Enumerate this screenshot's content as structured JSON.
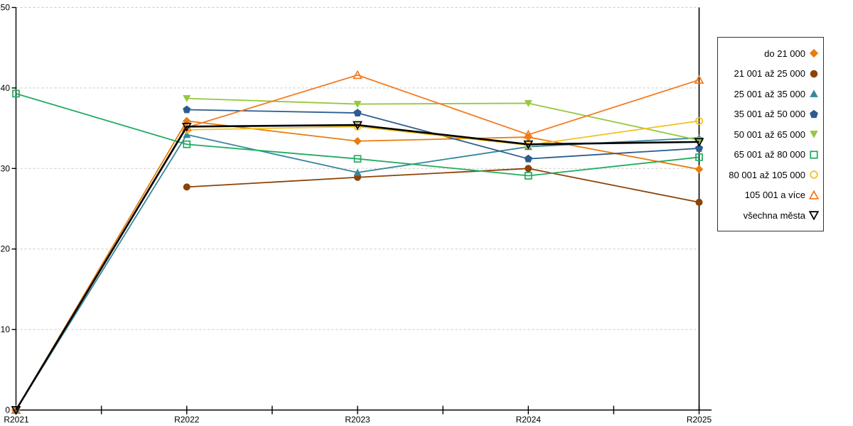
{
  "chart_data": {
    "type": "line",
    "title": "",
    "xlabel": "",
    "ylabel": "",
    "x_categories": [
      "R2021",
      "R2022",
      "R2023",
      "R2024",
      "R2025"
    ],
    "ylim": [
      0,
      50
    ],
    "yticks": [
      0,
      10,
      20,
      30,
      40,
      50
    ],
    "grid": "horizontal-dashed",
    "legend_position": "right-outside",
    "axis_color": "#000000",
    "grid_color": "#c9c9c9",
    "series": [
      {
        "name": "do 21 000",
        "color": "#e87d0d",
        "marker": "diamond",
        "values": [
          0,
          35.9,
          33.4,
          33.9,
          29.9
        ]
      },
      {
        "name": "21 001 až 25 000",
        "color": "#8c4307",
        "marker": "circle",
        "values": [
          null,
          27.7,
          28.9,
          30.0,
          25.8
        ]
      },
      {
        "name": "25 001 až 35 000",
        "color": "#35879c",
        "marker": "triangle-up",
        "values": [
          0,
          34.2,
          29.5,
          32.7,
          33.8
        ]
      },
      {
        "name": "35 001 až 50 000",
        "color": "#2c5d8f",
        "marker": "pentagon",
        "values": [
          null,
          37.3,
          36.9,
          31.2,
          32.5
        ]
      },
      {
        "name": "50 001 až 65 000",
        "color": "#97c83e",
        "marker": "triangle-down",
        "values": [
          null,
          38.7,
          38.0,
          38.1,
          33.5
        ]
      },
      {
        "name": "65 001 až 80 000",
        "color": "#21ac5f",
        "marker": "square-open",
        "values": [
          39.3,
          33.0,
          31.2,
          29.1,
          31.4
        ]
      },
      {
        "name": "80 001 až 105 000",
        "color": "#f2c11e",
        "marker": "circle-open",
        "values": [
          null,
          34.8,
          35.2,
          32.9,
          35.9
        ]
      },
      {
        "name": "105 001 a více",
        "color": "#f57b20",
        "marker": "triangle-up-open",
        "values": [
          0,
          35.1,
          41.6,
          34.2,
          41.0
        ]
      },
      {
        "name": "všechna města",
        "color": "#000000",
        "marker": "triangle-down-open",
        "values": [
          0,
          35.2,
          35.4,
          33.0,
          33.3
        ]
      }
    ]
  }
}
